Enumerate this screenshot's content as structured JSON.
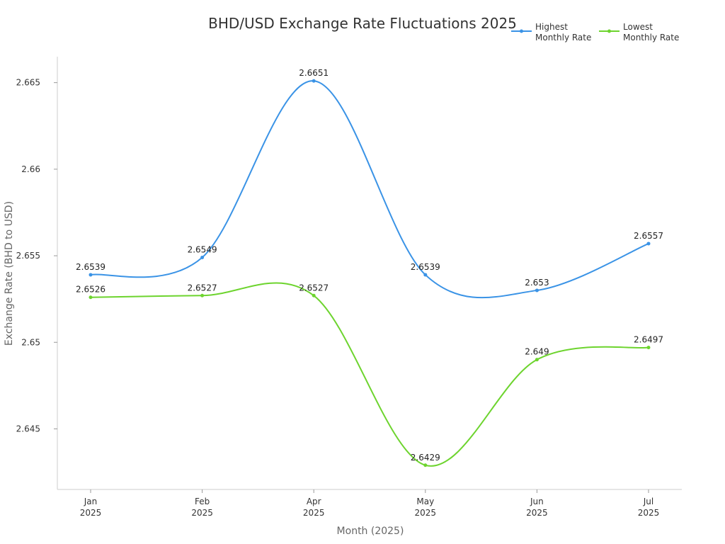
{
  "chart_data": {
    "type": "line",
    "title": "BHD/USD Exchange Rate Fluctuations 2025",
    "xlabel": "Month (2025)",
    "ylabel": "Exchange Rate (BHD to USD)",
    "categories": [
      [
        "Jan",
        "2025"
      ],
      [
        "Feb",
        "2025"
      ],
      [
        "Apr",
        "2025"
      ],
      [
        "May",
        "2025"
      ],
      [
        "Jun",
        "2025"
      ],
      [
        "Jul",
        "2025"
      ]
    ],
    "ylim": [
      2.6415,
      2.6665
    ],
    "yticks": [
      2.645,
      2.65,
      2.655,
      2.66,
      2.665
    ],
    "ytick_labels": [
      "2.645",
      "2.65",
      "2.655",
      "2.66",
      "2.665"
    ],
    "grid": false,
    "legend_position": "top-right",
    "series": [
      {
        "name": "Highest Monthly Rate",
        "name_lines": [
          "Highest",
          "Monthly Rate"
        ],
        "color": "#3a93e6",
        "values": [
          2.6539,
          2.6549,
          2.6651,
          2.6539,
          2.653,
          2.6557
        ]
      },
      {
        "name": "Lowest Monthly Rate",
        "name_lines": [
          "Lowest",
          "Monthly Rate"
        ],
        "color": "#6dd42e",
        "values": [
          2.6526,
          2.6527,
          2.6527,
          2.6429,
          2.649,
          2.6497
        ]
      }
    ]
  }
}
